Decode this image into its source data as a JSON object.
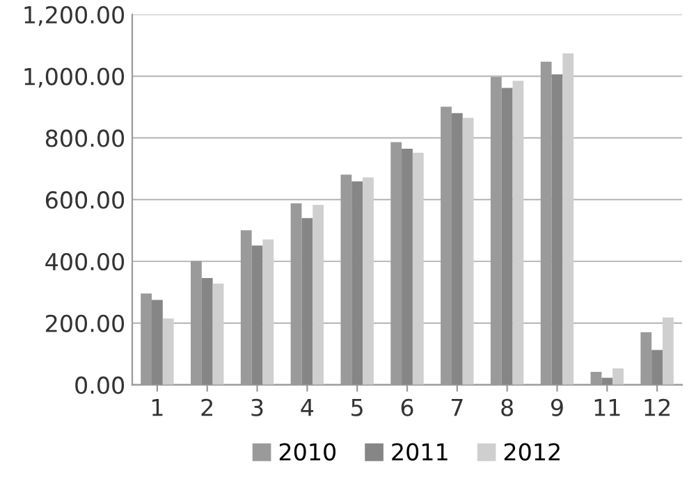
{
  "chart_data": {
    "type": "bar",
    "categories": [
      "1",
      "2",
      "3",
      "4",
      "5",
      "6",
      "7",
      "8",
      "9",
      "11",
      "12"
    ],
    "series": [
      {
        "name": "2010",
        "color": "#9a9a9a",
        "values": [
          296,
          401,
          501,
          588,
          681,
          786,
          901,
          998,
          1047,
          42,
          170
        ]
      },
      {
        "name": "2011",
        "color": "#868686",
        "values": [
          275,
          346,
          451,
          540,
          659,
          765,
          880,
          962,
          1006,
          23,
          113
        ]
      },
      {
        "name": "2012",
        "color": "#cfcfcf",
        "values": [
          215,
          328,
          471,
          583,
          672,
          752,
          865,
          985,
          1074,
          53,
          218
        ]
      }
    ],
    "ylim": [
      0,
      1200
    ],
    "yticks": [
      {
        "value": 0,
        "label": "0.00"
      },
      {
        "value": 200,
        "label": "200.00"
      },
      {
        "value": 400,
        "label": "400.00"
      },
      {
        "value": 600,
        "label": "600.00"
      },
      {
        "value": 800,
        "label": "800.00"
      },
      {
        "value": 1000,
        "label": "1,000.00"
      },
      {
        "value": 1200,
        "label": "1,200.00"
      }
    ],
    "grid": "y",
    "legend": "bottom"
  }
}
